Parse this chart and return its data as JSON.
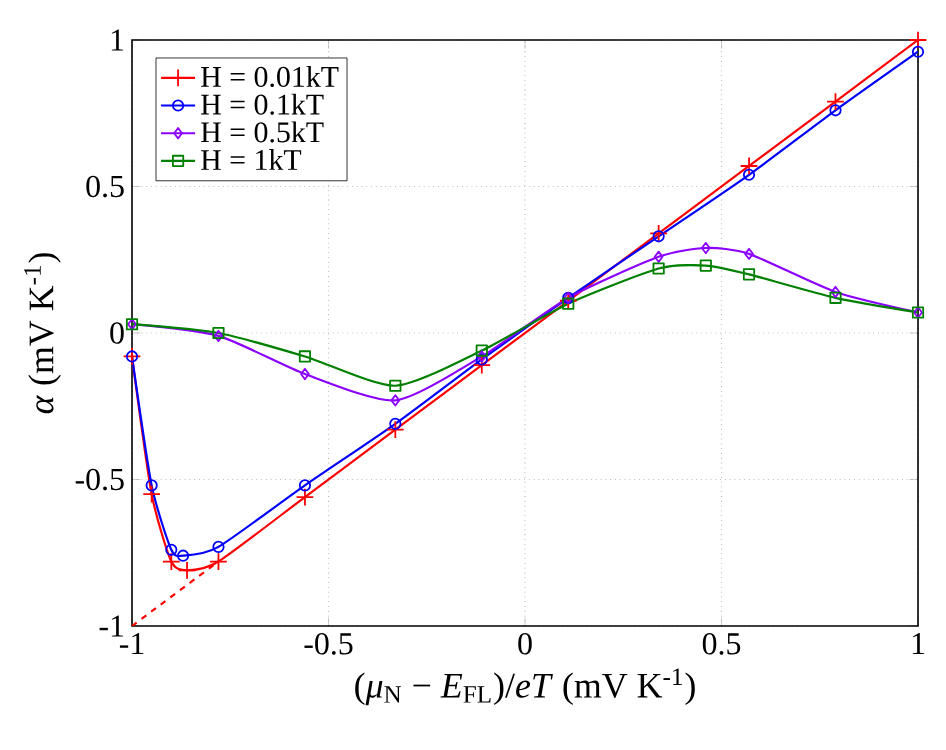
{
  "chart_data": {
    "type": "line",
    "xlabel": "(*μ*$_{N}$ − *E*$_{FL}$)/*eT* (mV K$^{-1}$)",
    "ylabel": "*α* (mV K$^{-1}$)",
    "xlim": [
      -1,
      1
    ],
    "ylim": [
      -1,
      1
    ],
    "xticks": [
      -1,
      -0.5,
      0,
      0.5,
      1
    ],
    "yticks": [
      -1,
      -0.5,
      0,
      0.5,
      1
    ],
    "grid": true,
    "legend": "top left",
    "line_style": "solid",
    "series": [
      {
        "name": "H = 0.01kT",
        "color": "#ff0000",
        "marker": "cross",
        "x": [
          -1,
          -0.95,
          -0.9,
          -0.86,
          -0.78,
          -0.56,
          -0.33,
          -0.11,
          0.11,
          0.34,
          0.57,
          0.79,
          1
        ],
        "values": [
          -0.08,
          -0.55,
          -0.78,
          -0.81,
          -0.78,
          -0.56,
          -0.33,
          -0.11,
          0.11,
          0.34,
          0.57,
          0.79,
          1
        ]
      },
      {
        "name": "H = 0.1kT",
        "color": "#0000ff",
        "marker": "circle",
        "x": [
          -1,
          -0.95,
          -0.9,
          -0.87,
          -0.78,
          -0.56,
          -0.33,
          -0.11,
          0.11,
          0.34,
          0.57,
          0.79,
          1
        ],
        "values": [
          -0.08,
          -0.52,
          -0.74,
          -0.76,
          -0.73,
          -0.52,
          -0.31,
          -0.09,
          0.12,
          0.33,
          0.54,
          0.76,
          0.96
        ]
      },
      {
        "name": "H = 0.5kT",
        "color": "#8b00ff",
        "marker": "diamond",
        "x": [
          -1,
          -0.78,
          -0.56,
          -0.33,
          -0.11,
          0.11,
          0.34,
          0.46,
          0.57,
          0.79,
          1
        ],
        "values": [
          0.03,
          -0.01,
          -0.14,
          -0.23,
          -0.08,
          0.12,
          0.26,
          0.29,
          0.27,
          0.14,
          0.07
        ]
      },
      {
        "name": "H = 1kT",
        "color": "#008000",
        "marker": "square",
        "x": [
          -1,
          -0.78,
          -0.56,
          -0.33,
          -0.11,
          0.11,
          0.34,
          0.46,
          0.57,
          0.79,
          1
        ],
        "values": [
          0.03,
          0.0,
          -0.08,
          -0.18,
          -0.06,
          0.1,
          0.22,
          0.23,
          0.2,
          0.12,
          0.07
        ]
      },
      {
        "color": "#ff0000",
        "marker": "none",
        "line_style": "dashed",
        "x": [
          -1,
          -0.78
        ],
        "values": [
          -1,
          -0.78
        ]
      }
    ]
  }
}
